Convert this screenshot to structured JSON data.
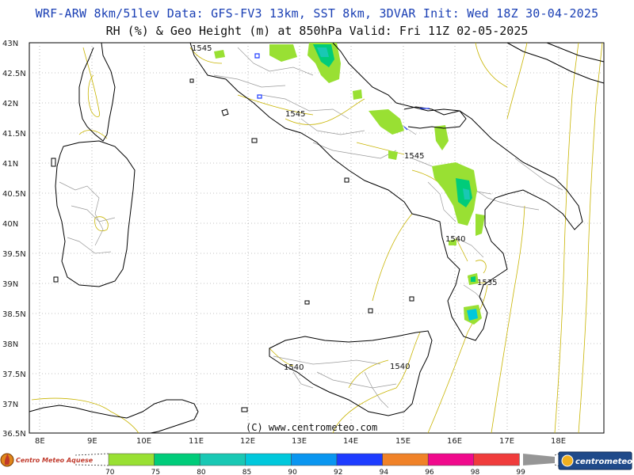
{
  "header": {
    "line1": "WRF-ARW 8km/51lev  Data: GFS-FV3 13km, SST 8km, 3DVAR  Init: Wed 18Z 30-04-2025",
    "line2": "RH (%) & Geo Height (m) at 850hPa  Valid: Fri 11Z 02-05-2025"
  },
  "axes": {
    "lat_labels": [
      "43N",
      "42.5N",
      "42N",
      "41.5N",
      "41N",
      "40.5N",
      "40N",
      "39.5N",
      "39N",
      "38.5N",
      "38N",
      "37.5N",
      "37N",
      "36.5N"
    ],
    "lon_labels": [
      "8E",
      "9E",
      "10E",
      "11E",
      "12E",
      "13E",
      "14E",
      "15E",
      "16E",
      "17E",
      "18E"
    ]
  },
  "contour_labels": [
    "1545",
    "1545",
    "1545",
    "1540",
    "1535",
    "1540",
    "1540"
  ],
  "copyright": "(C) www.centrometeo.com",
  "legend": {
    "values": [
      "70",
      "75",
      "80",
      "85",
      "90",
      "92",
      "94",
      "96",
      "98",
      "99"
    ],
    "colors": [
      "#99e033",
      "#00cc7a",
      "#19c8b4",
      "#00c8dc",
      "#0a96f0",
      "#1e3cff",
      "#f08228",
      "#f00a8c",
      "#f03c3c",
      "#a000c8",
      "#969696"
    ]
  },
  "logos": {
    "left": "Centro Meteo Aquese",
    "right": "centrometeo"
  },
  "colors": {
    "coast": "#000000",
    "borders": "#999999",
    "height_contour": "#c8b400",
    "grid": "#888888",
    "title_blue": "#1a3fb4"
  }
}
